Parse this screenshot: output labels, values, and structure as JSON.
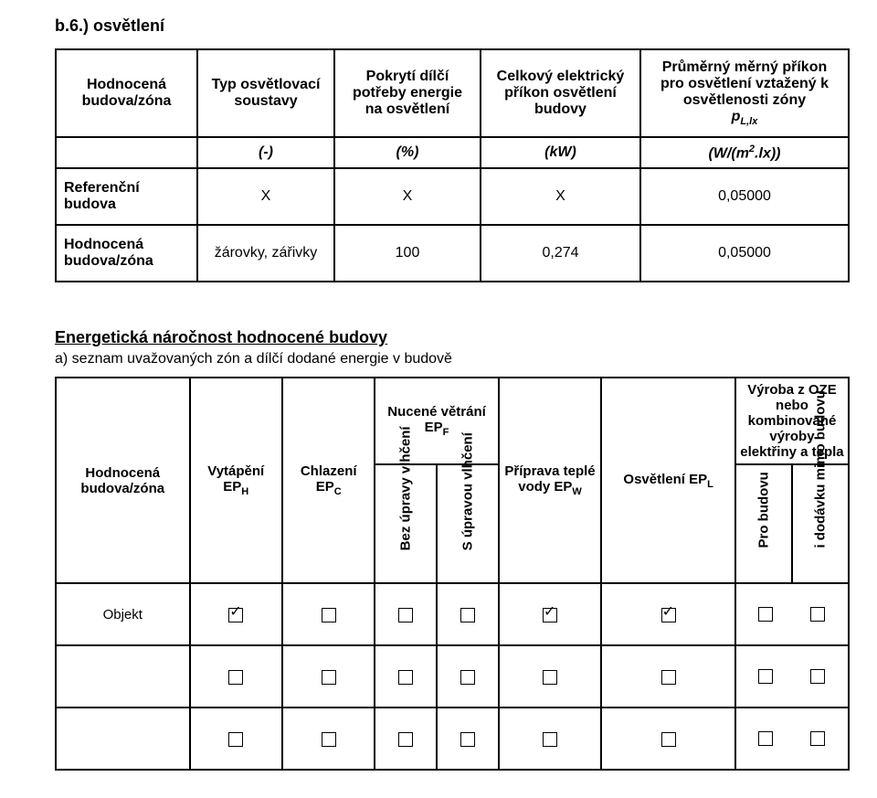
{
  "section_label": "b.6.) osvětlení",
  "table1": {
    "headers": {
      "col0": "Hodnocená budova/zóna",
      "col1": "Typ osvětlovací soustavy",
      "col2": "Pokrytí dílčí potřeby energie na osvětlení",
      "col3": "Celkový elektrický příkon osvětlení budovy",
      "col4_line1": "Průměrný měrný příkon pro osvětlení vztažený k osvětlenosti zóny",
      "col4_line2_pre": "p",
      "col4_line2_sub": "L,lx"
    },
    "units": {
      "col1": "(-)",
      "col2": "(%)",
      "col3": "(kW)",
      "col4_pre": "(W/(m",
      "col4_sup": "2",
      "col4_post": ".lx))"
    },
    "rows": [
      {
        "label": "Referenční budova",
        "c1": "X",
        "c2": "X",
        "c3": "X",
        "c4": "0,05000"
      },
      {
        "label": "Hodnocená budova/zóna",
        "c1": "žárovky, zářivky",
        "c2": "100",
        "c3": "0,274",
        "c4": "0,05000"
      }
    ]
  },
  "heading2": "Energetická náročnost hodnocené budovy",
  "subheading": "a) seznam uvažovaných zón a dílčí dodané energie v budově",
  "table2": {
    "headers": {
      "col0": "Hodnocená budova/zóna",
      "col1_pre": "Vytápění EP",
      "col1_sub": "H",
      "col2_pre": "Chlazení EP",
      "col2_sub": "C",
      "nucene_pre": "Nucené větrání EP",
      "nucene_sub": "F",
      "bez": "Bez úpravy vlhčení",
      "su": "S úpravou vlhčení",
      "col5_pre": "Příprava teplé vody EP",
      "col5_sub": "W",
      "col6_pre": "Osvětlení EP",
      "col6_sub": "L",
      "oze_line1": "Výroba z OZE nebo kombinované výroby elektřiny a tepla",
      "pro": "Pro budovu",
      "dod": "i dodávku mimo budovu"
    },
    "rows": [
      {
        "label": "Objekt",
        "vyt": true,
        "chl": false,
        "bez": false,
        "su": false,
        "tv": true,
        "osv": true,
        "pro": false,
        "dod": false
      },
      {
        "label": "",
        "vyt": false,
        "chl": false,
        "bez": false,
        "su": false,
        "tv": false,
        "osv": false,
        "pro": false,
        "dod": false
      },
      {
        "label": "",
        "vyt": false,
        "chl": false,
        "bez": false,
        "su": false,
        "tv": false,
        "osv": false,
        "pro": false,
        "dod": false
      }
    ]
  }
}
